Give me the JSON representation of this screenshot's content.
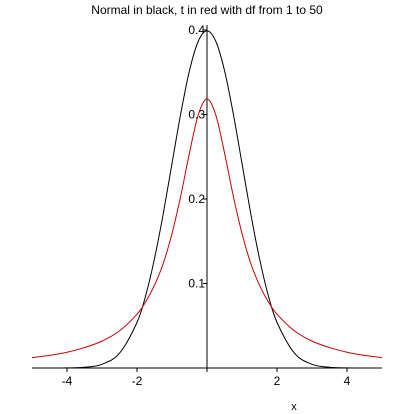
{
  "chart_data": {
    "type": "line",
    "title": "Normal in black, t in red with df from 1 to 50",
    "xlabel": "x",
    "ylabel": "",
    "xlim": [
      -5,
      5
    ],
    "ylim": [
      0,
      0.4
    ],
    "xticks": [
      -4,
      -2,
      0,
      2,
      4
    ],
    "xtick_labels": [
      "-4",
      "-2",
      "",
      "2",
      "4"
    ],
    "yticks": [
      0.1,
      0.2,
      0.3,
      0.4
    ],
    "ytick_labels": [
      "0.1",
      "0.2",
      "0.3",
      "0.4"
    ],
    "grid": false,
    "legend": "none",
    "x": [
      -5,
      -4.5,
      -4,
      -3.5,
      -3,
      -2.5,
      -2,
      -1.75,
      -1.5,
      -1.25,
      -1,
      -0.75,
      -0.5,
      -0.25,
      0,
      0.25,
      0.5,
      0.75,
      1,
      1.25,
      1.5,
      1.75,
      2,
      2.5,
      3,
      3.5,
      4,
      4.5,
      5
    ],
    "series": [
      {
        "color": "#000000",
        "values": [
          1.5e-06,
          1.6e-05,
          0.00013,
          0.00087,
          0.0044,
          0.0175,
          0.054,
          0.086,
          0.1295,
          0.1826,
          0.242,
          0.3011,
          0.3521,
          0.3867,
          0.3989,
          0.3867,
          0.3521,
          0.3011,
          0.242,
          0.1826,
          0.1295,
          0.086,
          0.054,
          0.0175,
          0.0044,
          0.00087,
          0.00013,
          1.6e-05,
          1.5e-06
        ]
      },
      {
        "color": "#cc0000",
        "values": [
          0.0122,
          0.0149,
          0.0187,
          0.0242,
          0.0318,
          0.0439,
          0.0637,
          0.0784,
          0.098,
          0.1238,
          0.1592,
          0.2037,
          0.2546,
          0.2996,
          0.3183,
          0.2996,
          0.2546,
          0.2037,
          0.1592,
          0.1238,
          0.098,
          0.0784,
          0.0637,
          0.0439,
          0.0318,
          0.0242,
          0.0187,
          0.0149,
          0.0122
        ]
      }
    ]
  }
}
